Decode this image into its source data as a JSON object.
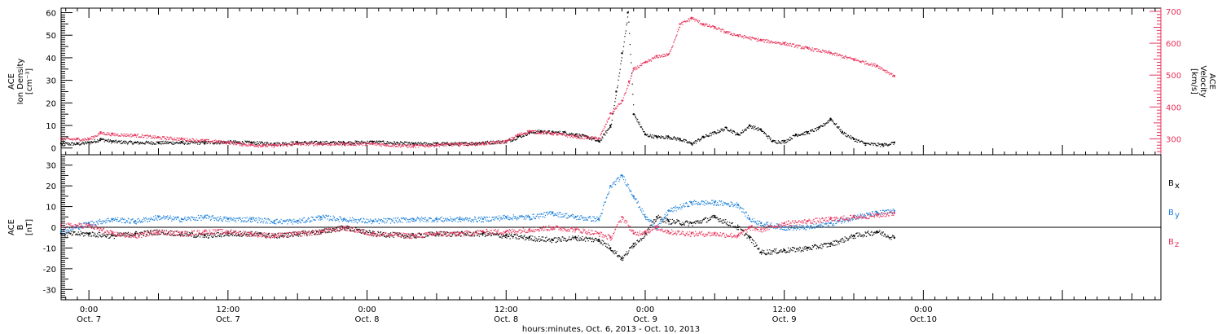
{
  "colors": {
    "black_series": "#000000",
    "red_series": "#e8325a",
    "blue_series": "#1a7fd9",
    "axis": "#000000"
  },
  "x_axis": {
    "title": "hours:minutes, Oct. 6, 2013 - Oct. 10, 2013",
    "range_hours": [
      -2.4,
      92.5
    ],
    "ticks": [
      {
        "hours": 0,
        "time": "0:00",
        "day": "Oct. 7"
      },
      {
        "hours": 12,
        "time": "12:00",
        "day": "Oct. 7"
      },
      {
        "hours": 24,
        "time": "0:00",
        "day": "Oct. 8"
      },
      {
        "hours": 36,
        "time": "12:00",
        "day": "Oct. 8"
      },
      {
        "hours": 48,
        "time": "0:00",
        "day": "Oct. 9"
      },
      {
        "hours": 60,
        "time": "12:00",
        "day": "Oct. 9"
      },
      {
        "hours": 72,
        "time": "0:00",
        "day": "Oct.10"
      }
    ]
  },
  "panels": {
    "top": {
      "left_title_lines": [
        "ACE",
        "Ion Density",
        "[cm⁻³]"
      ],
      "right_title_lines": [
        "ACE",
        "Velocity",
        "[km/s]"
      ],
      "left_ticks": [
        "0",
        "10",
        "20",
        "30",
        "40",
        "50",
        "60"
      ],
      "right_ticks": [
        "300",
        "400",
        "500",
        "600",
        "700"
      ]
    },
    "bottom": {
      "left_title_lines": [
        "ACE",
        "B",
        "[nT]"
      ],
      "left_ticks": [
        "-30",
        "-20",
        "-10",
        "0",
        "10",
        "20",
        "30"
      ],
      "legend": [
        {
          "label": "B",
          "sub": "x",
          "color": "#000000"
        },
        {
          "label": "B",
          "sub": "y",
          "color": "#1a7fd9"
        },
        {
          "label": "B",
          "sub": "z",
          "color": "#e8325a"
        }
      ]
    }
  },
  "chart_data": [
    {
      "type": "scatter",
      "title": "",
      "xlabel": "hours:minutes, Oct. 6, 2013 - Oct. 10, 2013",
      "ylabel": "ACE Ion Density [cm⁻³]",
      "ylim": [
        -3,
        62
      ],
      "y2label": "ACE Velocity [km/s]",
      "y2lim": [
        250,
        710
      ],
      "grid": false,
      "series": [
        {
          "axis": "left",
          "color": "#000000",
          "x": [
            -2.4,
            -1,
            0,
            1,
            2,
            4,
            6,
            8,
            10,
            12,
            14,
            16,
            18,
            20,
            22,
            24.5,
            28,
            30,
            32,
            34,
            36,
            37,
            38,
            39,
            40,
            41,
            42,
            43,
            44,
            45,
            45.5,
            46,
            46.5,
            47,
            48,
            49,
            50,
            51,
            52,
            53,
            54,
            55,
            56,
            57,
            58,
            59,
            60,
            61,
            62,
            63,
            64,
            65,
            66,
            67,
            68.5,
            69.5
          ],
          "values": [
            2,
            2,
            2.5,
            4,
            3,
            2.5,
            2.5,
            2.5,
            2.5,
            2.8,
            2.5,
            2,
            2.5,
            2.5,
            2.5,
            2.8,
            2,
            2,
            2,
            2.5,
            3,
            5,
            7,
            7.5,
            7,
            7,
            6,
            5,
            3,
            10,
            25,
            42,
            60,
            15,
            6,
            5,
            5,
            4,
            2,
            5,
            7,
            9,
            6,
            10,
            8,
            3,
            3,
            6,
            7,
            9,
            13,
            7,
            4,
            2,
            1.5,
            2.5
          ]
        },
        {
          "axis": "right",
          "color": "#e8325a",
          "x": [
            -2.4,
            -1,
            0,
            1,
            2,
            4,
            6,
            8,
            10,
            12,
            13,
            14,
            15,
            16,
            18,
            20,
            22,
            24.5,
            28,
            30,
            32,
            34,
            36,
            37,
            38,
            40,
            42,
            44,
            45,
            46,
            46.6,
            47,
            48,
            49,
            50,
            51,
            52,
            53,
            54,
            55,
            56,
            58,
            60,
            62,
            64,
            66,
            68,
            69.5
          ],
          "values": [
            300,
            300,
            300,
            320,
            315,
            312,
            305,
            300,
            295,
            290,
            285,
            282,
            280,
            280,
            285,
            285,
            285,
            285,
            278,
            282,
            284,
            286,
            293,
            313,
            325,
            318,
            308,
            302,
            380,
            420,
            480,
            520,
            540,
            560,
            565,
            660,
            680,
            660,
            650,
            635,
            625,
            610,
            600,
            585,
            570,
            550,
            530,
            498
          ]
        }
      ]
    },
    {
      "type": "scatter",
      "title": "",
      "xlabel": "hours:minutes, Oct. 6, 2013 - Oct. 10, 2013",
      "ylabel": "ACE B [nT]",
      "ylim": [
        -35,
        35
      ],
      "grid": false,
      "series": [
        {
          "name": "Bx",
          "color": "#000000",
          "x": [
            -2.4,
            0,
            2,
            4,
            6,
            8,
            10,
            12,
            14,
            16,
            18,
            20,
            22,
            24.5,
            28,
            30,
            32,
            34,
            36,
            38,
            40,
            42,
            44,
            45,
            46,
            47,
            48,
            49,
            50,
            52,
            54,
            56,
            57,
            58,
            60,
            62,
            64,
            66,
            68,
            69.5
          ],
          "values": [
            -3,
            -3,
            -4,
            -3,
            -2,
            -3,
            -4,
            -3,
            -3,
            -4,
            -3,
            -2,
            0,
            -3,
            -4,
            -3,
            -3,
            -3,
            -4,
            -5,
            -6,
            -5,
            -6,
            -10,
            -15,
            -8,
            -3,
            5,
            3,
            2,
            5,
            0,
            -5,
            -12,
            -11,
            -10,
            -8,
            -4,
            -2,
            -5
          ]
        },
        {
          "name": "By",
          "color": "#1a7fd9",
          "x": [
            -2.4,
            0,
            2,
            4,
            6,
            8,
            10,
            12,
            14,
            16,
            18,
            20,
            22,
            24.5,
            28,
            30,
            32,
            34,
            36,
            38,
            40,
            42,
            44,
            45,
            46,
            47,
            48,
            49,
            50,
            52,
            54,
            56,
            57,
            58,
            60,
            62,
            64,
            66,
            68,
            69.5
          ],
          "values": [
            -2,
            2,
            4,
            3,
            5,
            4,
            5,
            4,
            4,
            3,
            3,
            5,
            4,
            3,
            4,
            4,
            4,
            4,
            5,
            5,
            7,
            5,
            4,
            20,
            25,
            15,
            5,
            0,
            8,
            12,
            12,
            11,
            4,
            2,
            0,
            0,
            2,
            5,
            7,
            8
          ]
        },
        {
          "name": "Bz",
          "color": "#e8325a",
          "x": [
            -2.4,
            0,
            2,
            4,
            6,
            8,
            10,
            12,
            14,
            16,
            18,
            20,
            22,
            24.5,
            28,
            30,
            32,
            34,
            36,
            38,
            40,
            42,
            44,
            45,
            46,
            47,
            48,
            49,
            50,
            52,
            54,
            56,
            57,
            58,
            60,
            62,
            64,
            66,
            68,
            69.5
          ],
          "values": [
            1,
            1,
            -3,
            -4,
            -2,
            -3,
            -2,
            -2,
            -3,
            -4,
            -3,
            -2,
            0,
            -3,
            -4,
            -3,
            -3,
            -2,
            -2,
            -1,
            0,
            -1,
            -3,
            -5,
            5,
            -3,
            -2,
            0,
            -2,
            -3,
            -3,
            -4,
            0,
            -1,
            2,
            3,
            4,
            5,
            6,
            7
          ]
        }
      ]
    }
  ]
}
